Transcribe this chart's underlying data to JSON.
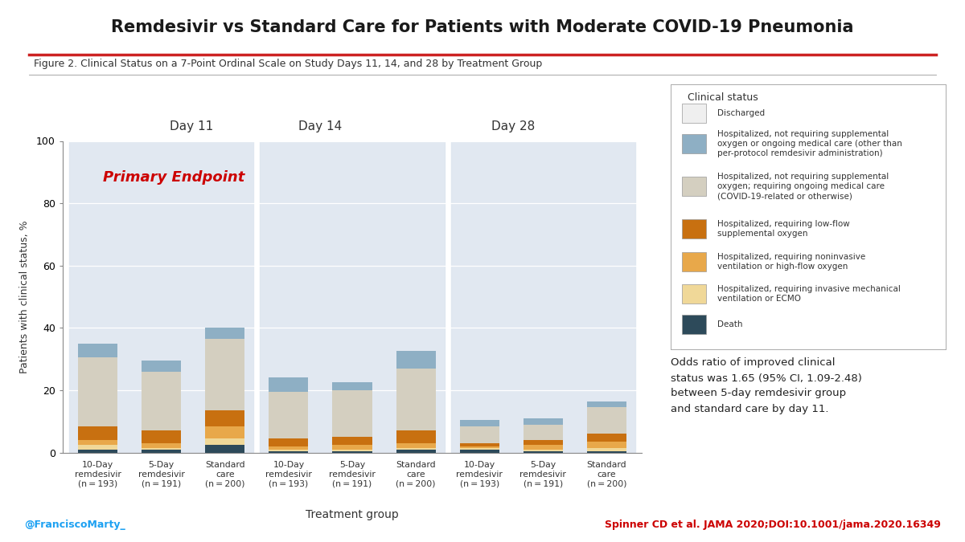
{
  "title": "Remdesivir vs Standard Care for Patients with Moderate COVID-19 Pneumonia",
  "figure_label": "Figure 2. Clinical Status on a 7-Point Ordinal Scale on Study Days 11, 14, and 28 by Treatment Group",
  "ylabel": "Patients with clinical status, %",
  "xlabel": "Treatment group",
  "ylim": [
    0,
    100
  ],
  "yticks": [
    0,
    20,
    40,
    60,
    80,
    100
  ],
  "background_color": "#ffffff",
  "day_labels": [
    "Day 11",
    "Day 14",
    "Day 28"
  ],
  "group_labels": [
    "10-Day\nremdesivir\n(n = 193)",
    "5-Day\nremdesivir\n(n = 191)",
    "Standard\ncare\n(n = 200)",
    "10-Day\nremdesivir\n(n = 193)",
    "5-Day\nremdesivir\n(n = 191)",
    "Standard\ncare\n(n = 200)",
    "10-Day\nremdesivir\n(n = 193)",
    "5-Day\nremdesivir\n(n = 191)",
    "Standard\ncare\n(n = 200)"
  ],
  "colors": {
    "death": "#2d4a5a",
    "hosp_invasive": "#f0d898",
    "hosp_noninvasive": "#e8a84a",
    "hosp_low_flow": "#c87010",
    "hosp_no_o2_ongoing": "#d4cfc0",
    "hosp_no_o2_no_care": "#8eafc4",
    "discharged": "#efefef"
  },
  "legend_labels": [
    "Discharged",
    "Hospitalized, not requiring supplemental\noxygen or ongoing medical care (other than\nper-protocol remdesivir administration)",
    "Hospitalized, not requiring supplemental\noxygen; requiring ongoing medical care\n(COVID-19-related or otherwise)",
    "Hospitalized, requiring low-flow\nsupplemental oxygen",
    "Hospitalized, requiring noninvasive\nventilation or high-flow oxygen",
    "Hospitalized, requiring invasive mechanical\nventilation or ECMO",
    "Death"
  ],
  "bars": {
    "death": [
      1.0,
      1.0,
      2.5,
      0.5,
      0.5,
      1.0,
      1.0,
      0.5,
      0.5
    ],
    "hosp_invasive": [
      1.5,
      0.5,
      2.0,
      0.5,
      0.5,
      0.5,
      0.5,
      0.5,
      1.0
    ],
    "hosp_noninvasive": [
      1.5,
      1.5,
      4.0,
      1.0,
      1.5,
      1.5,
      0.5,
      1.5,
      2.0
    ],
    "hosp_low_flow": [
      4.5,
      4.0,
      5.0,
      2.5,
      2.5,
      4.0,
      1.0,
      1.5,
      2.5
    ],
    "hosp_no_o2_ongoing": [
      22.0,
      19.0,
      23.0,
      15.0,
      15.0,
      20.0,
      5.5,
      5.0,
      8.5
    ],
    "hosp_no_o2_no_care": [
      4.5,
      3.5,
      3.5,
      4.5,
      2.5,
      5.5,
      2.0,
      2.0,
      2.0
    ],
    "discharged": [
      0,
      0,
      0,
      0,
      0,
      0,
      0,
      0,
      0
    ]
  },
  "primary_endpoint_text": "Primary Endpoint",
  "odds_ratio_text": "Odds ratio of improved clinical\nstatus was 1.65 (95% CI, 1.09-2.48)\nbetween 5-day remdesivir group\nand standard care by day 11.",
  "twitter_handle": "@FranciscoMarty_",
  "citation": "Spinner CD et al. JAMA 2020;DOI:10.1001/jama.2020.16349",
  "title_color": "#1a1a1a",
  "primary_endpoint_color": "#cc0000",
  "citation_color": "#cc0000",
  "twitter_color": "#1da1f2",
  "shade_color": "#dce5ef",
  "red_line_color": "#cc2222",
  "separator_line_color": "#999999"
}
